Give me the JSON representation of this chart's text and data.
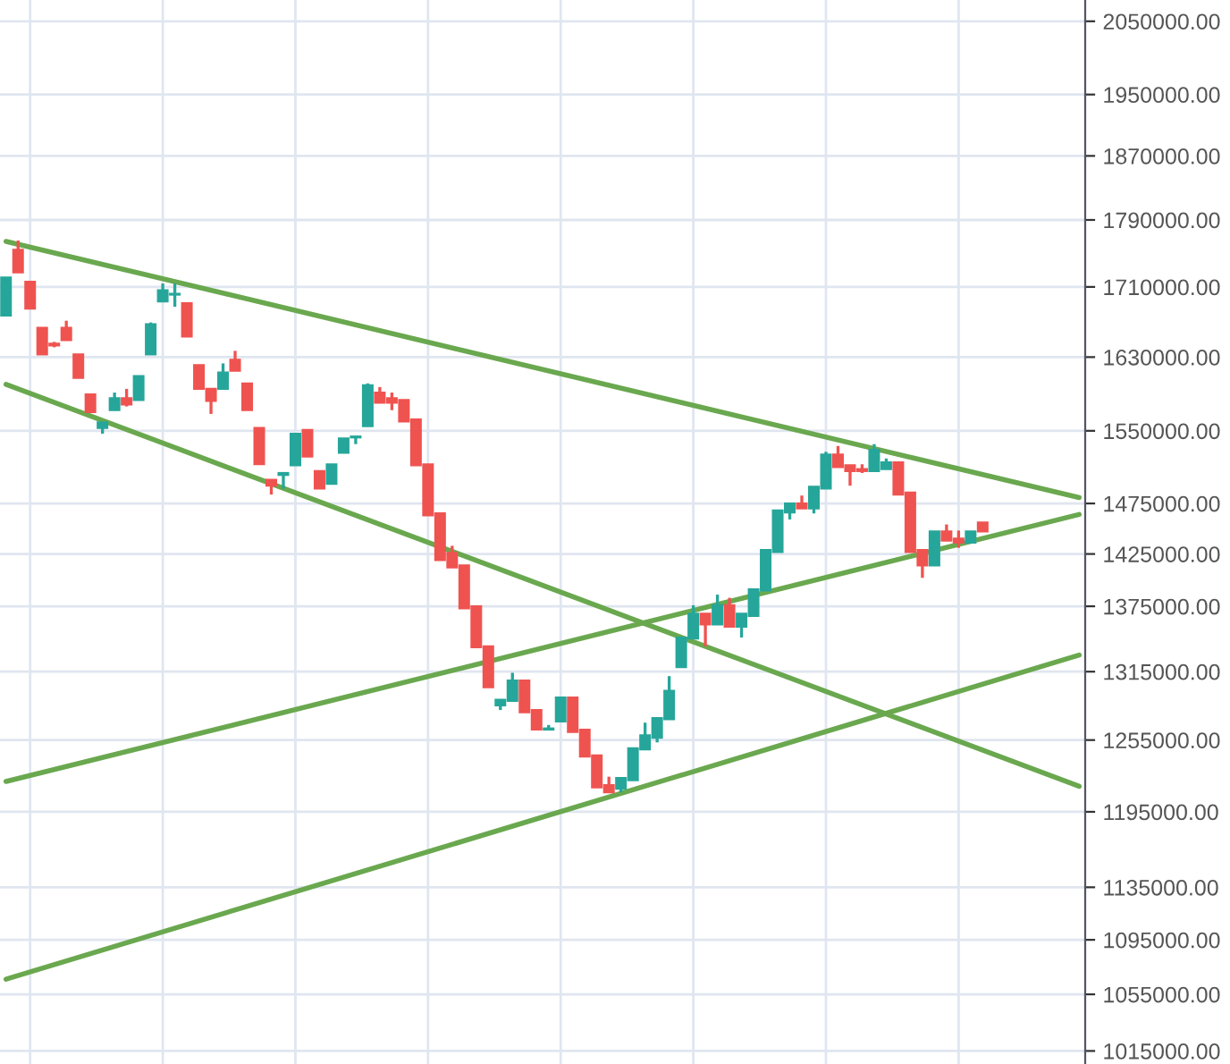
{
  "chart_data": {
    "type": "candlestick",
    "log": true,
    "grid": true,
    "tick_labels": "y",
    "legend": false,
    "categories": [
      null,
      null,
      null,
      null,
      null,
      null,
      null,
      null,
      null,
      null,
      null,
      null,
      null,
      null,
      null,
      null,
      null,
      null,
      null,
      null,
      null,
      null,
      null,
      null,
      null,
      null,
      null,
      null,
      null,
      null,
      null,
      null,
      null,
      null,
      null,
      null,
      null,
      null,
      null,
      null,
      null,
      null,
      null,
      null,
      null,
      null,
      null,
      null,
      null,
      null,
      null,
      null,
      null,
      null,
      null,
      null,
      null,
      null,
      null,
      null,
      null,
      null,
      null,
      null,
      null,
      null,
      null,
      null,
      null,
      null,
      null,
      null,
      null,
      null,
      null,
      null,
      null,
      null,
      null,
      null,
      null,
      null,
      null,
      null,
      null,
      null,
      null,
      null,
      null,
      null
    ],
    "ohlc": [
      [
        1677000,
        1721000,
        1677000,
        1721000
      ],
      [
        1754000,
        1765000,
        1727000,
        1727000
      ],
      [
        1716000,
        1716000,
        1685000,
        1685000
      ],
      [
        1663000,
        1663000,
        1633000,
        1633000
      ],
      [
        1645000,
        1647000,
        1641000,
        1643000
      ],
      [
        1663000,
        1671000,
        1649000,
        1649000
      ],
      [
        1633000,
        1633000,
        1607000,
        1607000
      ],
      [
        1589000,
        1589000,
        1570000,
        1570000
      ],
      [
        1553000,
        1559000,
        1547000,
        1559000
      ],
      [
        1572000,
        1591000,
        1572000,
        1585000
      ],
      [
        1585000,
        1595000,
        1576000,
        1578000
      ],
      [
        1583000,
        1609000,
        1583000,
        1609000
      ],
      [
        1633000,
        1669000,
        1633000,
        1667000
      ],
      [
        1693000,
        1714000,
        1693000,
        1706000
      ],
      [
        1701000,
        1714000,
        1687000,
        1702000
      ],
      [
        1691000,
        1691000,
        1653000,
        1653000
      ],
      [
        1621000,
        1621000,
        1595000,
        1595000
      ],
      [
        1595000,
        1595000,
        1568000,
        1582000
      ],
      [
        1595000,
        1623000,
        1595000,
        1613000
      ],
      [
        1627000,
        1637000,
        1615000,
        1615000
      ],
      [
        1601000,
        1601000,
        1572000,
        1572000
      ],
      [
        1553000,
        1553000,
        1515000,
        1515000
      ],
      [
        1499000,
        1499000,
        1484000,
        1493000
      ],
      [
        1504000,
        1506000,
        1490000,
        1506000
      ],
      [
        1514000,
        1547000,
        1514000,
        1547000
      ],
      [
        1551000,
        1551000,
        1523000,
        1523000
      ],
      [
        1508000,
        1508000,
        1490000,
        1490000
      ],
      [
        1495000,
        1515000,
        1495000,
        1515000
      ],
      [
        1527000,
        1542000,
        1527000,
        1542000
      ],
      [
        1543000,
        1544000,
        1536000,
        1544000
      ],
      [
        1555000,
        1601000,
        1555000,
        1599000
      ],
      [
        1591000,
        1597000,
        1580000,
        1580000
      ],
      [
        1585000,
        1591000,
        1572000,
        1580000
      ],
      [
        1583000,
        1583000,
        1560000,
        1560000
      ],
      [
        1562000,
        1562000,
        1514000,
        1514000
      ],
      [
        1515000,
        1515000,
        1463000,
        1463000
      ],
      [
        1465000,
        1465000,
        1419000,
        1419000
      ],
      [
        1426000,
        1433000,
        1412000,
        1412000
      ],
      [
        1414000,
        1414000,
        1373000,
        1373000
      ],
      [
        1375000,
        1375000,
        1337000,
        1337000
      ],
      [
        1338000,
        1338000,
        1301000,
        1301000
      ],
      [
        1285000,
        1290000,
        1281000,
        1290000
      ],
      [
        1289000,
        1314000,
        1289000,
        1307000
      ],
      [
        1307000,
        1307000,
        1279000,
        1279000
      ],
      [
        1281000,
        1281000,
        1264000,
        1264000
      ],
      [
        1264000,
        1268000,
        1264000,
        1265000
      ],
      [
        1271000,
        1292000,
        1271000,
        1292000
      ],
      [
        1292000,
        1292000,
        1262000,
        1262000
      ],
      [
        1264000,
        1264000,
        1241000,
        1241000
      ],
      [
        1242000,
        1242000,
        1215000,
        1215000
      ],
      [
        1217000,
        1224000,
        1211000,
        1211000
      ],
      [
        1214000,
        1223000,
        1211000,
        1223000
      ],
      [
        1221000,
        1248000,
        1221000,
        1248000
      ],
      [
        1247000,
        1270000,
        1247000,
        1259000
      ],
      [
        1257000,
        1274000,
        1253000,
        1274000
      ],
      [
        1273000,
        1311000,
        1273000,
        1298000
      ],
      [
        1319000,
        1346000,
        1319000,
        1346000
      ],
      [
        1345000,
        1376000,
        1345000,
        1368000
      ],
      [
        1368000,
        1368000,
        1338000,
        1358000
      ],
      [
        1358000,
        1386000,
        1358000,
        1376000
      ],
      [
        1376000,
        1383000,
        1356000,
        1356000
      ],
      [
        1356000,
        1368000,
        1346000,
        1368000
      ],
      [
        1366000,
        1391000,
        1366000,
        1391000
      ],
      [
        1390000,
        1429000,
        1390000,
        1429000
      ],
      [
        1427000,
        1468000,
        1427000,
        1468000
      ],
      [
        1466000,
        1475000,
        1459000,
        1475000
      ],
      [
        1475000,
        1483000,
        1470000,
        1470000
      ],
      [
        1470000,
        1492000,
        1465000,
        1492000
      ],
      [
        1490000,
        1528000,
        1490000,
        1525000
      ],
      [
        1525000,
        1534000,
        1512000,
        1512000
      ],
      [
        1514000,
        1514000,
        1493000,
        1508000
      ],
      [
        1510000,
        1515000,
        1506000,
        1508000
      ],
      [
        1508000,
        1536000,
        1508000,
        1530000
      ],
      [
        1510000,
        1521000,
        1510000,
        1517000
      ],
      [
        1517000,
        1517000,
        1484000,
        1484000
      ],
      [
        1486000,
        1486000,
        1427000,
        1427000
      ],
      [
        1429000,
        1429000,
        1402000,
        1414000
      ],
      [
        1414000,
        1447000,
        1414000,
        1447000
      ],
      [
        1447000,
        1454000,
        1438000,
        1438000
      ],
      [
        1440000,
        1448000,
        1431000,
        1436000
      ],
      [
        1436000,
        1447000,
        1436000,
        1447000
      ],
      [
        1456000,
        1456000,
        1447000,
        1447000
      ],
      null,
      null,
      null,
      null,
      null,
      null,
      null,
      null
    ],
    "colors": [
      "#26a69a",
      "#ef5350",
      "#ef5350",
      "#ef5350",
      "#ef5350",
      "#ef5350",
      "#ef5350",
      "#ef5350",
      "#26a69a",
      "#26a69a",
      "#ef5350",
      "#26a69a",
      "#26a69a",
      "#26a69a",
      "#26a69a",
      "#ef5350",
      "#ef5350",
      "#ef5350",
      "#26a69a",
      "#ef5350",
      "#ef5350",
      "#ef5350",
      "#ef5350",
      "#26a69a",
      "#26a69a",
      "#ef5350",
      "#ef5350",
      "#26a69a",
      "#26a69a",
      "#26a69a",
      "#26a69a",
      "#ef5350",
      "#ef5350",
      "#ef5350",
      "#ef5350",
      "#ef5350",
      "#ef5350",
      "#ef5350",
      "#ef5350",
      "#ef5350",
      "#ef5350",
      "#26a69a",
      "#26a69a",
      "#ef5350",
      "#ef5350",
      "#26a69a",
      "#26a69a",
      "#ef5350",
      "#ef5350",
      "#ef5350",
      "#ef5350",
      "#26a69a",
      "#26a69a",
      "#26a69a",
      "#26a69a",
      "#26a69a",
      "#26a69a",
      "#26a69a",
      "#ef5350",
      "#26a69a",
      "#ef5350",
      "#26a69a",
      "#26a69a",
      "#26a69a",
      "#26a69a",
      "#26a69a",
      "#ef5350",
      "#26a69a",
      "#26a69a",
      "#ef5350",
      "#ef5350",
      "#ef5350",
      "#26a69a",
      "#26a69a",
      "#ef5350",
      "#ef5350",
      "#ef5350",
      "#26a69a",
      "#ef5350",
      "#ef5350",
      "#26a69a",
      "#ef5350",
      null,
      null,
      null,
      null,
      null,
      null,
      null,
      null
    ],
    "series": [
      {
        "type": "line",
        "color": "#6aa84f",
        "values": [
          1764000,
          null,
          null,
          null,
          null,
          null,
          null,
          null,
          null,
          null,
          null,
          null,
          null,
          null,
          null,
          null,
          null,
          null,
          null,
          null,
          null,
          null,
          null,
          null,
          null,
          null,
          null,
          null,
          null,
          null,
          null,
          null,
          null,
          null,
          null,
          null,
          null,
          null,
          null,
          null,
          null,
          null,
          null,
          null,
          null,
          null,
          null,
          null,
          null,
          null,
          null,
          null,
          null,
          null,
          null,
          null,
          null,
          null,
          null,
          null,
          null,
          null,
          null,
          null,
          null,
          null,
          null,
          null,
          null,
          null,
          null,
          null,
          null,
          null,
          null,
          null,
          null,
          null,
          null,
          null,
          null,
          null,
          null,
          null,
          null,
          null,
          null,
          null,
          null,
          1481000
        ]
      },
      {
        "type": "line",
        "color": "#6aa84f",
        "values": [
          1600000,
          null,
          null,
          null,
          null,
          null,
          null,
          null,
          null,
          null,
          null,
          null,
          null,
          null,
          null,
          null,
          null,
          null,
          null,
          null,
          null,
          null,
          null,
          null,
          null,
          null,
          null,
          null,
          null,
          null,
          null,
          null,
          null,
          null,
          null,
          null,
          null,
          null,
          null,
          null,
          null,
          null,
          null,
          null,
          null,
          null,
          null,
          null,
          null,
          null,
          null,
          null,
          null,
          null,
          null,
          null,
          null,
          null,
          null,
          null,
          null,
          null,
          null,
          null,
          null,
          null,
          null,
          null,
          null,
          null,
          null,
          null,
          null,
          null,
          null,
          null,
          null,
          null,
          null,
          null,
          null,
          null,
          null,
          null,
          null,
          null,
          null,
          null,
          null,
          1216000
        ]
      },
      {
        "type": "line",
        "color": "#6aa84f",
        "values": [
          1220000,
          null,
          null,
          null,
          null,
          null,
          null,
          null,
          null,
          null,
          null,
          null,
          null,
          null,
          null,
          null,
          null,
          null,
          null,
          null,
          null,
          null,
          null,
          null,
          null,
          null,
          null,
          null,
          null,
          null,
          null,
          null,
          null,
          null,
          null,
          null,
          null,
          null,
          null,
          null,
          null,
          null,
          null,
          null,
          null,
          null,
          null,
          null,
          null,
          null,
          null,
          null,
          null,
          null,
          null,
          null,
          null,
          null,
          null,
          null,
          null,
          null,
          null,
          null,
          null,
          null,
          null,
          null,
          null,
          null,
          null,
          null,
          null,
          null,
          null,
          null,
          null,
          null,
          null,
          null,
          null,
          null,
          null,
          null,
          null,
          null,
          null,
          null,
          null,
          1464000
        ]
      },
      {
        "type": "line",
        "color": "#6aa84f",
        "values": [
          1066000,
          null,
          null,
          null,
          null,
          null,
          null,
          null,
          null,
          null,
          null,
          null,
          null,
          null,
          null,
          null,
          null,
          null,
          null,
          null,
          null,
          null,
          null,
          null,
          null,
          null,
          null,
          null,
          null,
          null,
          null,
          null,
          null,
          null,
          null,
          null,
          null,
          null,
          null,
          null,
          null,
          null,
          null,
          null,
          null,
          null,
          null,
          null,
          null,
          null,
          null,
          null,
          null,
          null,
          null,
          null,
          null,
          null,
          null,
          null,
          null,
          null,
          null,
          null,
          null,
          null,
          null,
          null,
          null,
          null,
          null,
          null,
          null,
          null,
          null,
          null,
          null,
          null,
          null,
          null,
          null,
          null,
          null,
          null,
          null,
          null,
          null,
          null,
          null,
          1330000
        ]
      }
    ],
    "ylim": [
      1006000,
      2080000
    ],
    "yticks": [
      {
        "value": 2050000,
        "label": "2050000.00"
      },
      {
        "value": 1950000,
        "label": "1950000.00"
      },
      {
        "value": 1870000,
        "label": "1870000.00"
      },
      {
        "value": 1790000,
        "label": "1790000.00"
      },
      {
        "value": 1710000,
        "label": "1710000.00"
      },
      {
        "value": 1630000,
        "label": "1630000.00"
      },
      {
        "value": 1550000,
        "label": "1550000.00"
      },
      {
        "value": 1475000,
        "label": "1475000.00"
      },
      {
        "value": 1425000,
        "label": "1425000.00"
      },
      {
        "value": 1375000,
        "label": "1375000.00"
      },
      {
        "value": 1315000,
        "label": "1315000.00"
      },
      {
        "value": 1255000,
        "label": "1255000.00"
      },
      {
        "value": 1195000,
        "label": "1195000.00"
      },
      {
        "value": 1135000,
        "label": "1135000.00"
      },
      {
        "value": 1095000,
        "label": "1095000.00"
      },
      {
        "value": 1055000,
        "label": "1055000.00"
      },
      {
        "value": 1015000,
        "label": "1015000.00"
      }
    ]
  }
}
